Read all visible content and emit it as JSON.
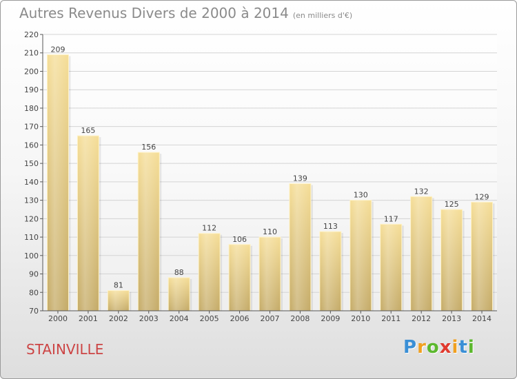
{
  "chart_data": {
    "type": "bar",
    "title": "Autres Revenus Divers de 2000 à 2014",
    "subtitle": "(en milliers d'€)",
    "categories": [
      "2000",
      "2001",
      "2002",
      "2003",
      "2004",
      "2005",
      "2006",
      "2007",
      "2008",
      "2009",
      "2010",
      "2011",
      "2012",
      "2013",
      "2014"
    ],
    "values": [
      209,
      165,
      81,
      156,
      88,
      112,
      106,
      110,
      139,
      113,
      130,
      117,
      132,
      125,
      129
    ],
    "ylim": [
      70,
      220
    ],
    "yticks": [
      70,
      80,
      90,
      100,
      110,
      120,
      130,
      140,
      150,
      160,
      170,
      180,
      190,
      200,
      210,
      220
    ],
    "xlabel": "",
    "ylabel": "",
    "grid": true,
    "bar_color": "#e8cf8a"
  },
  "location": "STAINVILLE",
  "logo": {
    "letters": [
      "P",
      "r",
      "o",
      "x",
      "i",
      "t",
      "i"
    ],
    "colors": [
      "#3a8fd6",
      "#f0a020",
      "#5cb82e",
      "#e03a2e",
      "#f0a020",
      "#3a8fd6",
      "#5cb82e"
    ]
  }
}
